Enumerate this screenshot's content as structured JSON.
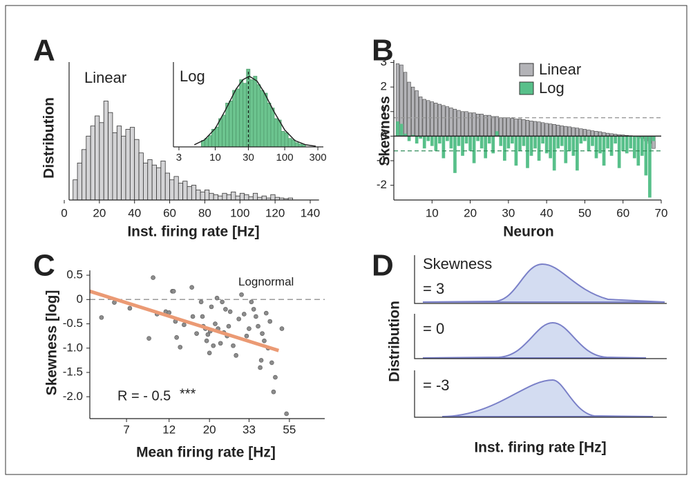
{
  "chart_data": [
    {
      "type": "histogram",
      "panel": "A",
      "label": "Linear",
      "ylabel": "Distribution",
      "xlabel": "Inst. firing rate [Hz]",
      "bins": [
        5,
        7.5,
        10,
        12.5,
        15,
        17.5,
        20,
        22.5,
        25,
        27.5,
        30,
        32.5,
        35,
        37.5,
        40,
        42.5,
        45,
        47.5,
        50,
        52.5,
        55,
        57.5,
        60,
        62.5,
        65,
        67.5,
        70,
        72.5,
        75,
        77.5,
        80,
        82.5,
        85,
        87.5,
        90,
        92.5,
        95,
        97.5,
        100,
        102.5,
        105,
        107.5,
        110,
        112.5,
        115,
        117.5,
        120,
        122.5,
        125,
        127.5,
        130
      ],
      "counts": [
        30,
        55,
        75,
        95,
        110,
        125,
        115,
        147,
        130,
        100,
        110,
        95,
        105,
        108,
        90,
        70,
        55,
        60,
        52,
        48,
        58,
        40,
        30,
        35,
        25,
        28,
        20,
        22,
        15,
        12,
        15,
        10,
        8,
        6,
        10,
        8,
        12,
        6,
        10,
        8,
        5,
        10,
        4,
        6,
        3,
        8,
        4,
        3,
        2,
        3
      ],
      "color": "#d4d4d6",
      "xlim": [
        0,
        145
      ],
      "ylim": [
        0,
        205
      ],
      "xticks": [
        0,
        20,
        40,
        60,
        80,
        100,
        120,
        140
      ]
    },
    {
      "type": "histogram",
      "label": "Log",
      "xscale": "log",
      "bins": [
        6.31,
        7.08,
        7.94,
        8.91,
        10,
        11.22,
        12.59,
        14.13,
        15.85,
        17.78,
        19.95,
        22.39,
        25.12,
        28.18,
        31.62,
        35.48,
        39.81,
        44.67,
        50.12,
        56.23,
        63.1,
        70.79,
        79.43,
        89.13,
        100,
        112.2,
        125.89,
        141.25,
        158.49,
        177.83,
        199.53
      ],
      "counts": [
        9,
        12,
        16,
        25,
        28,
        40,
        45,
        62,
        65,
        80,
        82,
        95,
        90,
        110,
        95,
        100,
        88,
        80,
        76,
        62,
        55,
        40,
        38,
        22,
        20,
        12,
        10,
        6,
        4,
        3
      ],
      "fit": {
        "x": [
          5,
          7,
          10,
          14,
          20,
          25,
          31,
          40,
          50,
          70,
          100,
          140,
          200,
          280
        ],
        "values": [
          3,
          10,
          26,
          52,
          82,
          95,
          100,
          93,
          78,
          50,
          24,
          9,
          3,
          1
        ]
      },
      "vline": 30,
      "color": "#6cc48f",
      "xlim": [
        2.5,
        360
      ],
      "ylim": [
        0,
        120
      ],
      "xticks": [
        3,
        10,
        30,
        100,
        300
      ]
    },
    {
      "type": "bar",
      "panel": "B",
      "ylabel": "Skewness",
      "xlabel": "Neuron",
      "x": [
        1,
        2,
        3,
        4,
        5,
        6,
        7,
        8,
        9,
        10,
        11,
        12,
        13,
        14,
        15,
        16,
        17,
        18,
        19,
        20,
        21,
        22,
        23,
        24,
        25,
        26,
        27,
        28,
        29,
        30,
        31,
        32,
        33,
        34,
        35,
        36,
        37,
        38,
        39,
        40,
        41,
        42,
        43,
        44,
        45,
        46,
        47,
        48,
        49,
        50,
        51,
        52,
        53,
        54,
        55,
        56,
        57,
        58,
        59,
        60,
        61,
        62,
        63,
        64,
        65,
        66,
        67,
        68
      ],
      "series": [
        {
          "name": "Linear",
          "color": "#b3b3b7",
          "values": [
            2.95,
            2.9,
            2.6,
            2.2,
            2.0,
            1.85,
            1.6,
            1.5,
            1.45,
            1.4,
            1.35,
            1.3,
            1.25,
            1.2,
            1.15,
            1.1,
            1.05,
            1.0,
            1.0,
            0.95,
            0.95,
            0.9,
            0.9,
            0.85,
            0.85,
            0.8,
            0.8,
            0.75,
            0.75,
            0.75,
            0.72,
            0.7,
            0.7,
            0.68,
            0.65,
            0.62,
            0.6,
            0.58,
            0.55,
            0.52,
            0.5,
            0.48,
            0.45,
            0.42,
            0.4,
            0.38,
            0.35,
            0.33,
            0.3,
            0.28,
            0.25,
            0.22,
            0.2,
            0.18,
            0.15,
            0.12,
            0.1,
            0.08,
            0.06,
            0.05,
            0.03,
            0.02,
            0.0,
            -0.05,
            -0.1,
            -0.2,
            -0.3,
            -0.5
          ]
        },
        {
          "name": "Log",
          "color": "#58c08a",
          "values": [
            0.6,
            0.5,
            0.1,
            -0.2,
            0.05,
            -0.3,
            -0.1,
            -0.5,
            -0.2,
            -0.4,
            -0.6,
            -0.3,
            -0.9,
            -0.2,
            -0.5,
            -1.5,
            -0.4,
            -0.8,
            -0.3,
            -0.6,
            -1.1,
            -0.2,
            -0.5,
            -0.9,
            -0.3,
            -0.7,
            0.2,
            -0.4,
            -1.0,
            -0.5,
            -0.3,
            -1.2,
            -0.6,
            -0.4,
            -1.3,
            -0.8,
            -0.5,
            -1.0,
            -0.3,
            -0.7,
            -0.9,
            -1.4,
            -0.5,
            -0.4,
            -1.1,
            -0.6,
            -0.8,
            -1.4,
            -0.3,
            -0.2,
            -0.6,
            -0.4,
            -0.9,
            -0.7,
            -1.2,
            -0.5,
            -0.8,
            -0.3,
            -1.3,
            -0.6,
            -0.7,
            -0.5,
            -0.9,
            -1.2,
            -0.8,
            -1.6,
            -2.5,
            -0.2
          ]
        }
      ],
      "hlines": [
        {
          "value": 0.75,
          "color": "#999999"
        },
        {
          "value": -0.6,
          "color": "#2e8b57"
        }
      ],
      "xlim": [
        0,
        70
      ],
      "ylim": [
        -2.6,
        3.1
      ],
      "xticks": [
        10,
        20,
        30,
        40,
        50,
        60,
        70
      ],
      "yticks": [
        -2,
        -1,
        0,
        1,
        2,
        3
      ]
    },
    {
      "type": "scatter",
      "panel": "C",
      "ylabel": "Skewness [log]",
      "xlabel": "Mean firing rate [Hz]",
      "xscale": "log",
      "x": [
        5.1,
        6.0,
        7.3,
        9.3,
        9.8,
        10.3,
        11.5,
        12,
        12.5,
        12.7,
        13,
        13.2,
        13.8,
        14.5,
        16,
        16.2,
        17,
        18,
        18.3,
        18.5,
        19,
        19.3,
        19.6,
        20,
        20.2,
        20.5,
        21,
        21.5,
        22,
        22.3,
        23,
        23.5,
        24,
        24.5,
        25,
        25.5,
        26,
        27,
        28,
        29,
        30,
        31,
        32,
        33,
        34,
        35,
        36,
        37,
        38,
        38.5,
        39,
        40,
        41,
        42,
        43,
        44,
        45,
        46,
        50,
        53
      ],
      "values": [
        -0.37,
        -0.06,
        -0.18,
        -0.8,
        0.45,
        -0.3,
        -0.25,
        -0.27,
        0.17,
        0.17,
        -0.45,
        -0.78,
        -0.98,
        -0.52,
        0.25,
        -0.35,
        -0.7,
        -0.05,
        -0.35,
        -0.55,
        -0.6,
        -0.85,
        -0.72,
        -1.1,
        -0.65,
        -0.15,
        -0.95,
        -0.5,
        0.03,
        -0.6,
        -0.9,
        -0.05,
        -0.68,
        -0.2,
        -0.75,
        -0.55,
        -0.25,
        -0.95,
        -1.15,
        -0.4,
        0.1,
        -0.3,
        -0.75,
        -0.6,
        -0.05,
        -0.2,
        -0.35,
        -0.55,
        -1.4,
        -1.25,
        -0.7,
        -0.85,
        -0.28,
        -1.0,
        -0.45,
        -1.3,
        -1.9,
        -1.6,
        -0.6,
        -2.35
      ],
      "color": "#8c8c8c",
      "fit": {
        "color": "#eb9a74",
        "x": [
          4.4,
          48
        ],
        "values": [
          0.17,
          -1.05
        ]
      },
      "hline": {
        "value": 0,
        "label": "Lognormal"
      },
      "annotations": [
        "R = - 0.5",
        "***"
      ],
      "xlim": [
        4.4,
        86
      ],
      "ylim": [
        -2.45,
        0.6
      ],
      "xticks": [
        7,
        12,
        20,
        33,
        55
      ],
      "yticks": [
        0.5,
        0,
        -0.5,
        {
          "value": -1,
          "label": "-1.0"
        },
        -1.5,
        {
          "value": -2,
          "label": "-2.0"
        }
      ]
    },
    {
      "type": "illustration",
      "panel": "D",
      "ylabel": "Distribution",
      "xlabel": "Inst. firing rate [Hz]",
      "labels": [
        "Skewness",
        "= 3",
        "= 0",
        "= -3"
      ]
    }
  ]
}
